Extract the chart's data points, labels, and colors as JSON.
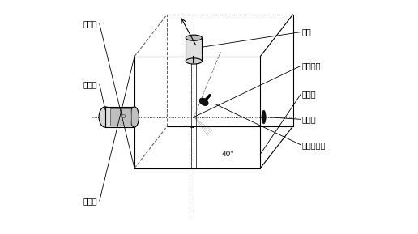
{
  "background": "#ffffff",
  "labels": {
    "jinshugun_top": "金属管",
    "jinshugun_bot": "金属管",
    "jiguangqi": "激光器",
    "qibeng": "气泵",
    "jiancezhongxin": "检测中心",
    "jianceqiao": "检测壳",
    "guangzuai": "光阻扯",
    "siguangerjiguan": "硅光二极管",
    "angle": "40°"
  }
}
